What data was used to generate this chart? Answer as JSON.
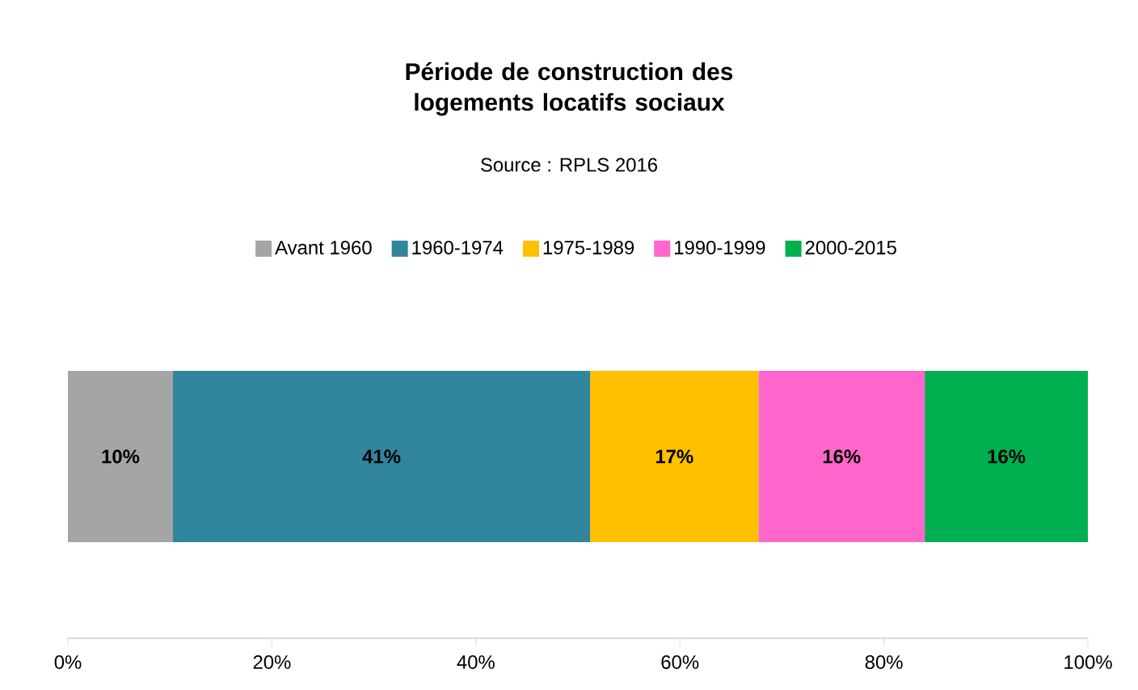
{
  "chart_data": {
    "type": "bar",
    "orientation": "horizontal",
    "stacked": true,
    "title": "Période de construction des logements locatifs sociaux",
    "subtitle": "Source : RPLS 2016",
    "categories": [
      null
    ],
    "series": [
      {
        "name": "Avant 1960",
        "color": "#a5a5a5",
        "values": [
          10.3
        ],
        "value_labels": [
          "10%"
        ]
      },
      {
        "name": "1960-1974",
        "color": "#31859c",
        "values": [
          40.9
        ],
        "value_labels": [
          "41%"
        ]
      },
      {
        "name": "1975-1989",
        "color": "#ffc000",
        "values": [
          16.5
        ],
        "value_labels": [
          "17%"
        ]
      },
      {
        "name": "1990-1999",
        "color": "#ff66cc",
        "values": [
          16.3
        ],
        "value_labels": [
          "16%"
        ]
      },
      {
        "name": "2000-2015",
        "color": "#00b050",
        "values": [
          16.0
        ],
        "value_labels": [
          "16%"
        ]
      }
    ],
    "xlim": [
      0,
      100
    ],
    "xticks": [
      {
        "value": 0,
        "label": "0%"
      },
      {
        "value": 20,
        "label": "20%"
      },
      {
        "value": 40,
        "label": "40%"
      },
      {
        "value": 60,
        "label": "60%"
      },
      {
        "value": 80,
        "label": "80%"
      },
      {
        "value": 100,
        "label": "100%"
      }
    ],
    "legend": "top",
    "grid": false
  }
}
